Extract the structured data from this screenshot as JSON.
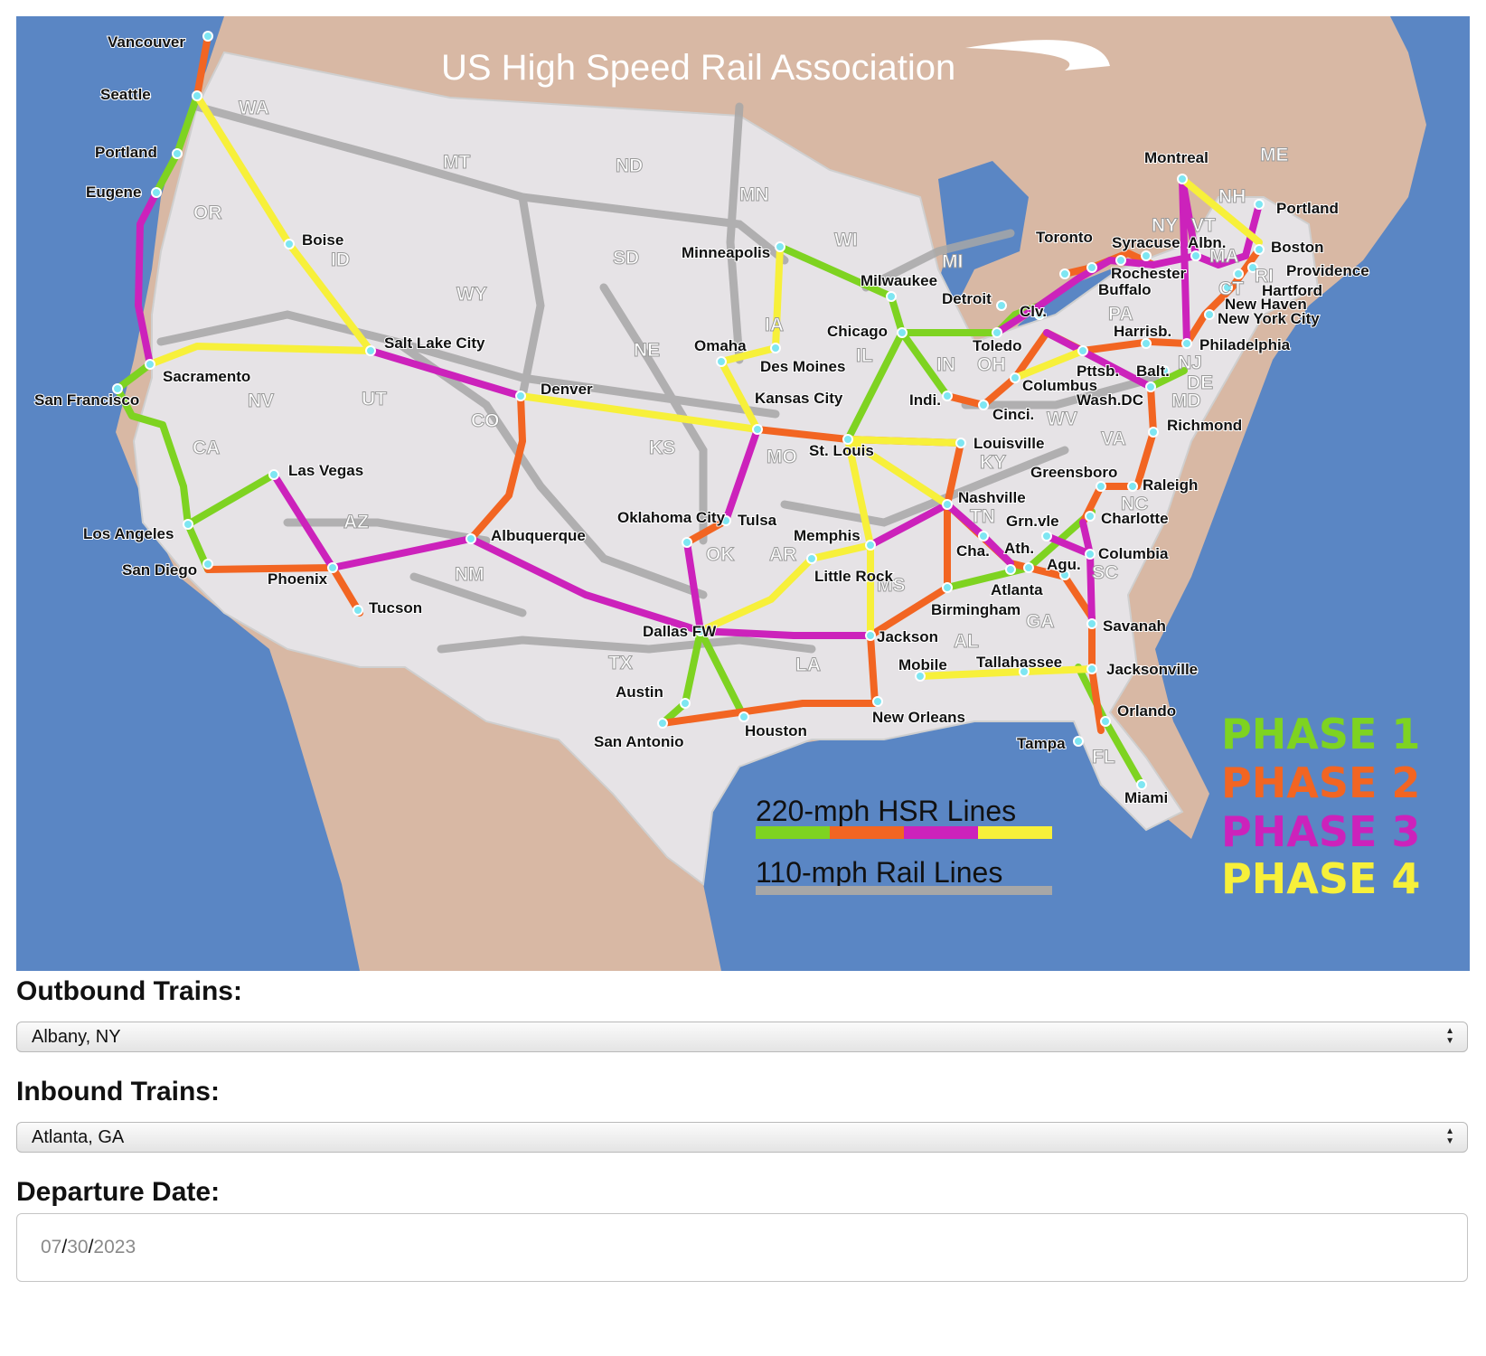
{
  "map": {
    "title": "US High Speed Rail Association",
    "legend": {
      "hsr_label": "220-mph HSR Lines",
      "rail_label": "110-mph Rail Lines",
      "phases": [
        {
          "label": "PHASE 1",
          "color": "#7ed321"
        },
        {
          "label": "PHASE 2",
          "color": "#f26522"
        },
        {
          "label": "PHASE 3",
          "color": "#cc22bb"
        },
        {
          "label": "PHASE 4",
          "color": "#f7f03a"
        }
      ]
    },
    "colors": {
      "ocean": "#5a86c4",
      "land_other": "#d8b8a4",
      "us_land": "#e6e3e6",
      "rail_110": "#a7a7a7"
    },
    "states": [
      "WA",
      "OR",
      "CA",
      "ID",
      "NV",
      "UT",
      "AZ",
      "MT",
      "WY",
      "CO",
      "NM",
      "ND",
      "SD",
      "NE",
      "KS",
      "OK",
      "TX",
      "MN",
      "IA",
      "MO",
      "AR",
      "LA",
      "WI",
      "IL",
      "MI",
      "IN",
      "OH",
      "KY",
      "TN",
      "MS",
      "AL",
      "GA",
      "FL",
      "SC",
      "NC",
      "VA",
      "WV",
      "PA",
      "NY",
      "VT",
      "NH",
      "ME",
      "MA",
      "RI",
      "CT",
      "NJ",
      "DE",
      "MD"
    ],
    "cities": [
      "Vancouver",
      "Seattle",
      "Portland",
      "Eugene",
      "Boise",
      "Sacramento",
      "San Francisco",
      "Las Vegas",
      "Los Angeles",
      "San Diego",
      "Phoenix",
      "Tucson",
      "Salt Lake City",
      "Denver",
      "Albuquerque",
      "Minneapolis",
      "Omaha",
      "Des Moines",
      "Kansas City",
      "St. Louis",
      "Oklahoma City",
      "Tulsa",
      "Dallas FW",
      "Austin",
      "San Antonio",
      "Houston",
      "Little Rock",
      "Memphis",
      "Jackson",
      "New Orleans",
      "Mobile",
      "Milwaukee",
      "Chicago",
      "Detroit",
      "Toledo",
      "Clv.",
      "Indi.",
      "Cinci.",
      "Columbus",
      "Louisville",
      "Nashville",
      "Cha.",
      "Birmingham",
      "Atlanta",
      "Ath.",
      "Grn.vle",
      "Agu.",
      "Tallahassee",
      "Jacksonville",
      "Savanah",
      "Orlando",
      "Tampa",
      "Miami",
      "Charlotte",
      "Columbia",
      "Raleigh",
      "Greensboro",
      "Richmond",
      "Wash.DC",
      "Balt.",
      "Pttsb.",
      "Harrisb.",
      "Philadelphia",
      "New York City",
      "New Haven",
      "Hartford",
      "Providence",
      "Boston",
      "Portland",
      "Albn.",
      "Syracuse",
      "Rochester",
      "Buffalo",
      "Toronto",
      "Montreal"
    ]
  },
  "form": {
    "outbound_label": "Outbound Trains:",
    "outbound_value": "Albany, NY",
    "inbound_label": "Inbound Trains:",
    "inbound_value": "Atlanta, GA",
    "departure_label": "Departure Date:",
    "departure_month": "07",
    "departure_day": "30",
    "departure_year": "2023"
  }
}
